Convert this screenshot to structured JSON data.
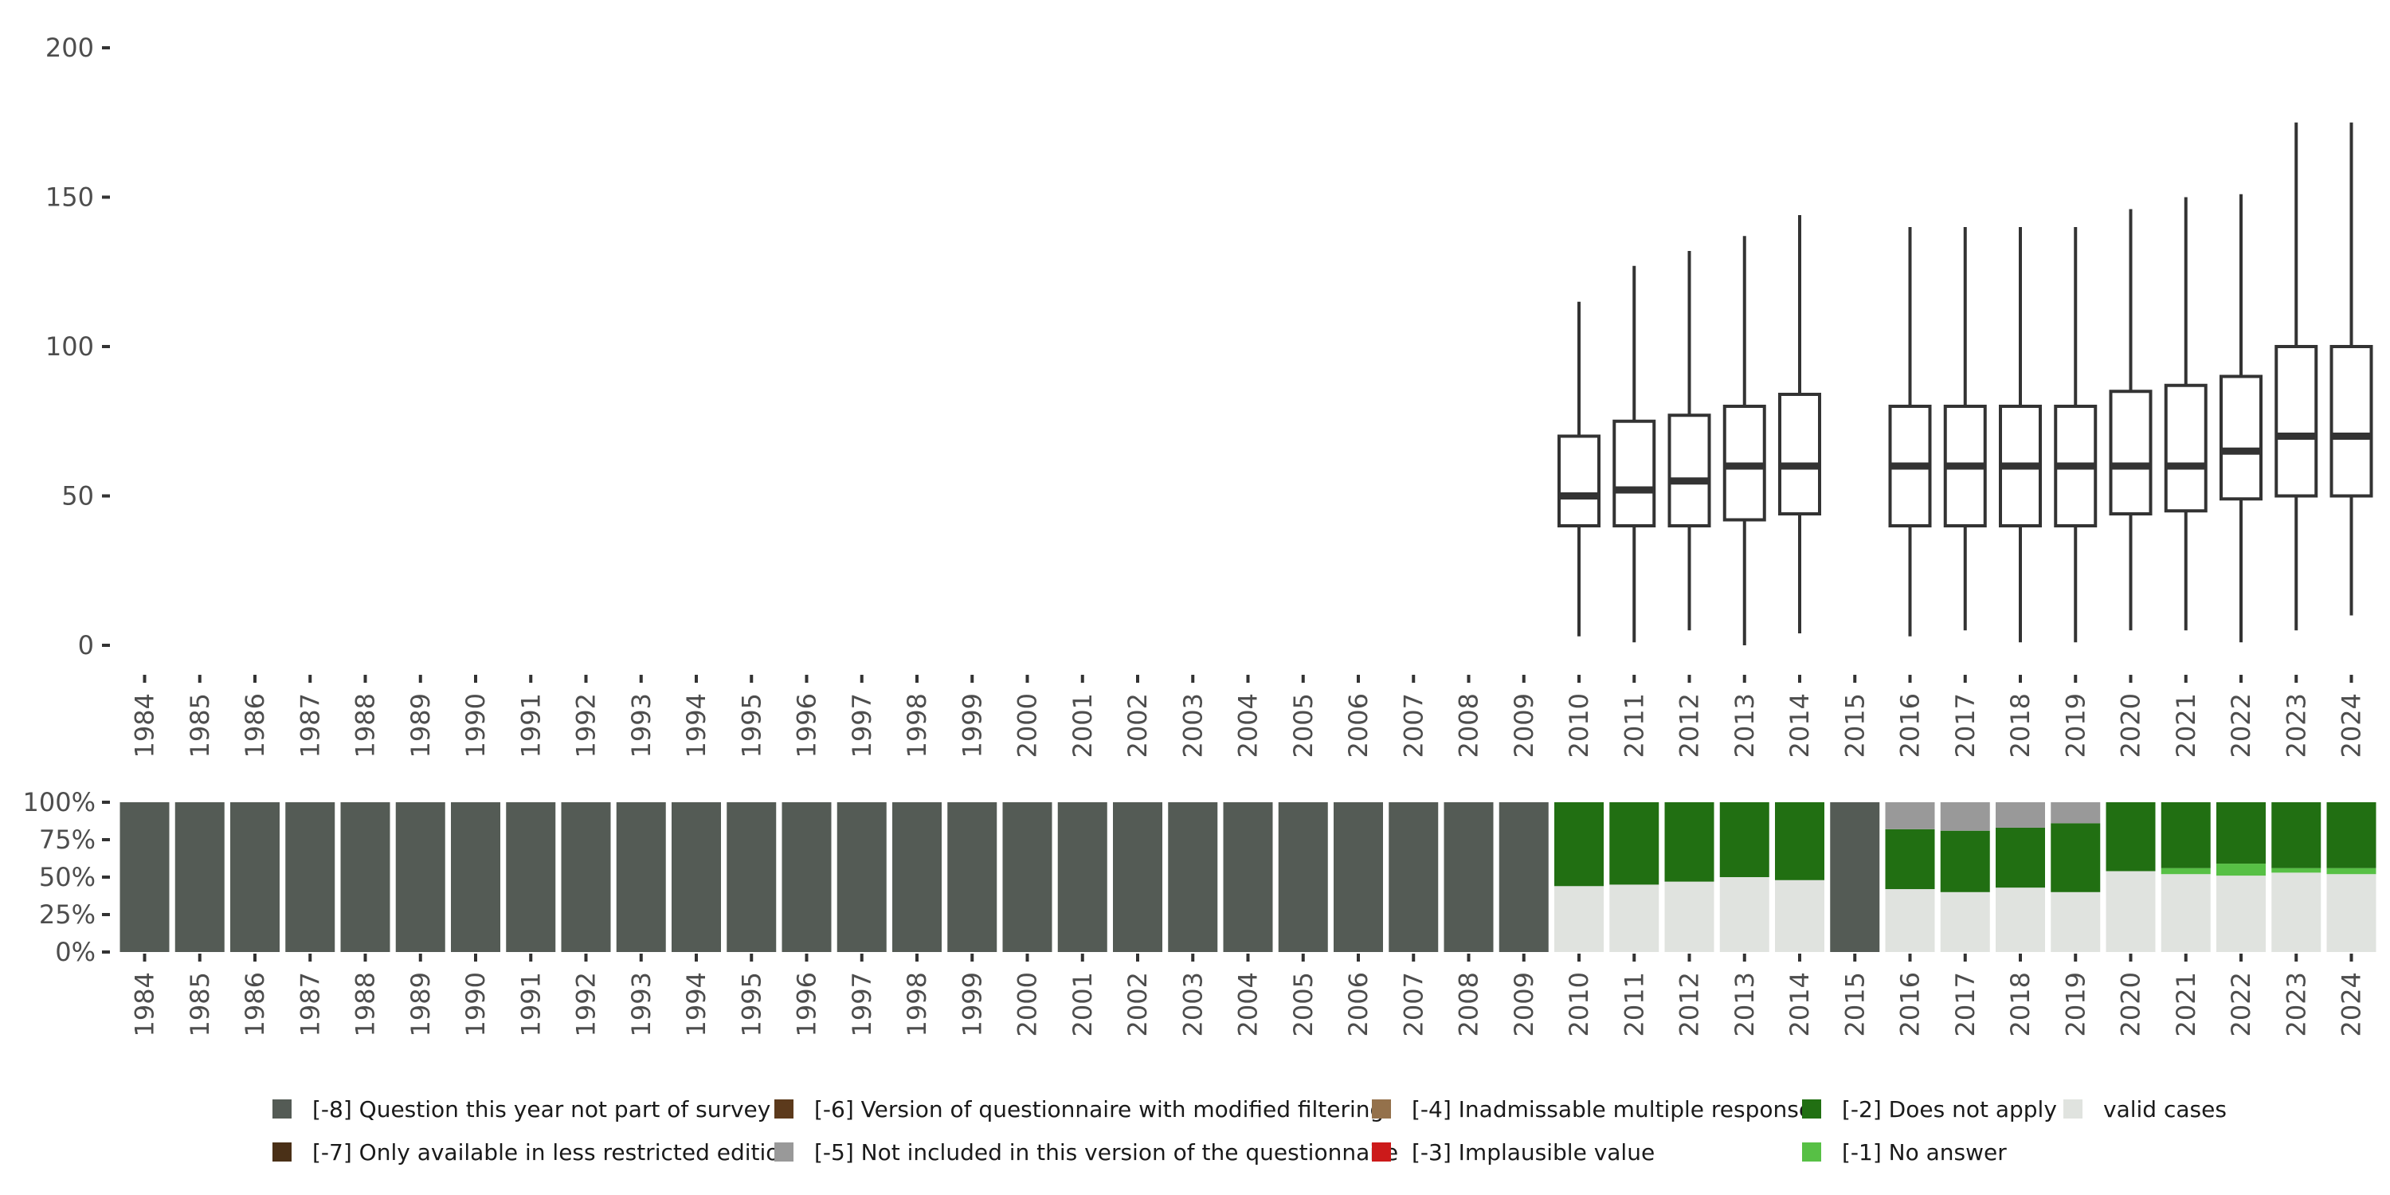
{
  "chart_data": [
    {
      "type": "boxplot",
      "title": "",
      "xlabel": "",
      "ylabel": "",
      "ylim": [
        0,
        200
      ],
      "yticks": [
        0,
        50,
        100,
        150,
        200
      ],
      "categories": [
        "1984",
        "1985",
        "1986",
        "1987",
        "1988",
        "1989",
        "1990",
        "1991",
        "1992",
        "1993",
        "1994",
        "1995",
        "1996",
        "1997",
        "1998",
        "1999",
        "2000",
        "2001",
        "2002",
        "2003",
        "2004",
        "2005",
        "2006",
        "2007",
        "2008",
        "2009",
        "2010",
        "2011",
        "2012",
        "2013",
        "2014",
        "2015",
        "2016",
        "2017",
        "2018",
        "2019",
        "2020",
        "2021",
        "2022",
        "2023",
        "2024"
      ],
      "boxes": [
        {
          "year": "2010",
          "min": 3,
          "q1": 40,
          "median": 50,
          "q3": 70,
          "max": 115
        },
        {
          "year": "2011",
          "min": 1,
          "q1": 40,
          "median": 52,
          "q3": 75,
          "max": 127
        },
        {
          "year": "2012",
          "min": 5,
          "q1": 40,
          "median": 55,
          "q3": 77,
          "max": 132
        },
        {
          "year": "2013",
          "min": 0,
          "q1": 42,
          "median": 60,
          "q3": 80,
          "max": 137
        },
        {
          "year": "2014",
          "min": 4,
          "q1": 44,
          "median": 60,
          "q3": 84,
          "max": 144
        },
        {
          "year": "2016",
          "min": 3,
          "q1": 40,
          "median": 60,
          "q3": 80,
          "max": 140
        },
        {
          "year": "2017",
          "min": 5,
          "q1": 40,
          "median": 60,
          "q3": 80,
          "max": 140
        },
        {
          "year": "2018",
          "min": 1,
          "q1": 40,
          "median": 60,
          "q3": 80,
          "max": 140
        },
        {
          "year": "2019",
          "min": 1,
          "q1": 40,
          "median": 60,
          "q3": 80,
          "max": 140
        },
        {
          "year": "2020",
          "min": 5,
          "q1": 44,
          "median": 60,
          "q3": 85,
          "max": 146
        },
        {
          "year": "2021",
          "min": 5,
          "q1": 45,
          "median": 60,
          "q3": 87,
          "max": 150
        },
        {
          "year": "2022",
          "min": 1,
          "q1": 49,
          "median": 65,
          "q3": 90,
          "max": 151
        },
        {
          "year": "2023",
          "min": 5,
          "q1": 50,
          "median": 70,
          "q3": 100,
          "max": 175
        },
        {
          "year": "2024",
          "min": 10,
          "q1": 50,
          "median": 70,
          "q3": 100,
          "max": 175
        }
      ]
    },
    {
      "type": "stacked-bar",
      "title": "",
      "ylim": [
        0,
        1
      ],
      "yticks": [
        "0%",
        "25%",
        "50%",
        "75%",
        "100%"
      ],
      "categories": [
        "1984",
        "1985",
        "1986",
        "1987",
        "1988",
        "1989",
        "1990",
        "1991",
        "1992",
        "1993",
        "1994",
        "1995",
        "1996",
        "1997",
        "1998",
        "1999",
        "2000",
        "2001",
        "2002",
        "2003",
        "2004",
        "2005",
        "2006",
        "2007",
        "2008",
        "2009",
        "2010",
        "2011",
        "2012",
        "2013",
        "2014",
        "2015",
        "2016",
        "2017",
        "2018",
        "2019",
        "2020",
        "2021",
        "2022",
        "2023",
        "2024"
      ],
      "series_order_bottom_to_top": [
        "valid",
        "na1",
        "na2",
        "na5",
        "na8"
      ],
      "series": [
        {
          "key": "valid",
          "name": "valid cases",
          "color": "#e0e3df",
          "values": [
            0,
            0,
            0,
            0,
            0,
            0,
            0,
            0,
            0,
            0,
            0,
            0,
            0,
            0,
            0,
            0,
            0,
            0,
            0,
            0,
            0,
            0,
            0,
            0,
            0,
            0,
            0.44,
            0.45,
            0.47,
            0.5,
            0.48,
            0,
            0.42,
            0.4,
            0.43,
            0.4,
            0.54,
            0.52,
            0.51,
            0.53,
            0.52
          ]
        },
        {
          "key": "na1",
          "name": "[-1] No answer",
          "color": "#57c045",
          "values": [
            0,
            0,
            0,
            0,
            0,
            0,
            0,
            0,
            0,
            0,
            0,
            0,
            0,
            0,
            0,
            0,
            0,
            0,
            0,
            0,
            0,
            0,
            0,
            0,
            0,
            0,
            0,
            0,
            0,
            0,
            0,
            0,
            0,
            0,
            0,
            0,
            0,
            0.04,
            0.08,
            0.03,
            0.04
          ]
        },
        {
          "key": "na2",
          "name": "[-2] Does not apply",
          "color": "#216f12",
          "values": [
            0,
            0,
            0,
            0,
            0,
            0,
            0,
            0,
            0,
            0,
            0,
            0,
            0,
            0,
            0,
            0,
            0,
            0,
            0,
            0,
            0,
            0,
            0,
            0,
            0,
            0,
            0.56,
            0.55,
            0.53,
            0.5,
            0.52,
            0,
            0.4,
            0.41,
            0.4,
            0.46,
            0.46,
            0.44,
            0.41,
            0.44,
            0.44
          ]
        },
        {
          "key": "na5",
          "name": "[-5] Not included in this version of the questionnaire",
          "color": "#999999",
          "values": [
            0,
            0,
            0,
            0,
            0,
            0,
            0,
            0,
            0,
            0,
            0,
            0,
            0,
            0,
            0,
            0,
            0,
            0,
            0,
            0,
            0,
            0,
            0,
            0,
            0,
            0,
            0,
            0,
            0,
            0,
            0,
            0,
            0.18,
            0.19,
            0.17,
            0.14,
            0,
            0,
            0,
            0,
            0
          ]
        },
        {
          "key": "na8",
          "name": "[-8] Question this year not part of survey",
          "color": "#545b55",
          "values": [
            1,
            1,
            1,
            1,
            1,
            1,
            1,
            1,
            1,
            1,
            1,
            1,
            1,
            1,
            1,
            1,
            1,
            1,
            1,
            1,
            1,
            1,
            1,
            1,
            1,
            1,
            0,
            0,
            0,
            0,
            0,
            1,
            0,
            0,
            0,
            0,
            0,
            0,
            0,
            0,
            0
          ]
        }
      ]
    }
  ],
  "legend": {
    "rows": [
      [
        {
          "label": "[-8] Question this year not part of survey",
          "color": "#545b55"
        },
        {
          "label": "[-6] Version of questionnaire with modified filtering",
          "color": "#5c3a1c"
        },
        {
          "label": "[-4] Inadmissable multiple response",
          "color": "#94714b"
        },
        {
          "label": "[-2] Does not apply",
          "color": "#216f12"
        },
        {
          "label": "valid cases",
          "color": "#e0e3df"
        }
      ],
      [
        {
          "label": "[-7] Only available in less restricted edition",
          "color": "#4a3017"
        },
        {
          "label": "[-5] Not included in this version of the questionnaire",
          "color": "#999999"
        },
        {
          "label": "[-3] Implausible value",
          "color": "#cc1a1a"
        },
        {
          "label": "[-1] No answer",
          "color": "#57c045"
        }
      ]
    ]
  }
}
